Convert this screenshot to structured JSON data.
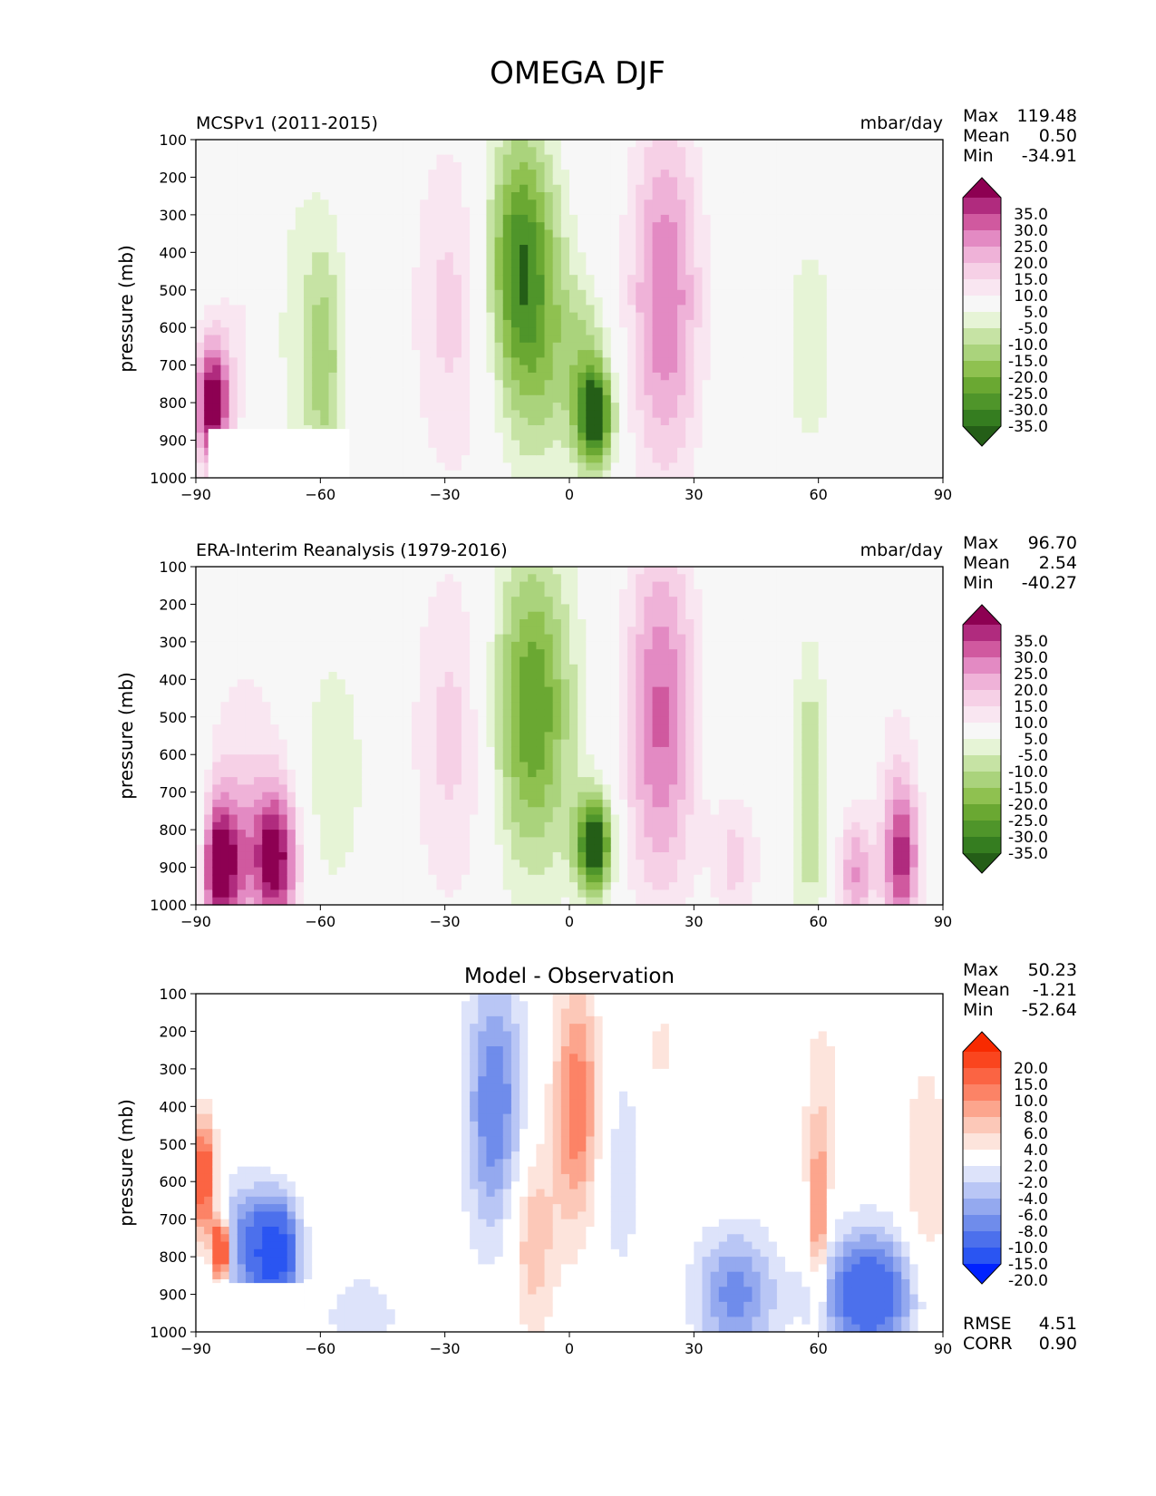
{
  "figure": {
    "title": "OMEGA DJF"
  },
  "colors": {
    "green_magenta": [
      "#245e17",
      "#357d20",
      "#4f952a",
      "#6aa832",
      "#8fc150",
      "#aad37c",
      "#c6e3a4",
      "#e6f4d6",
      "#f7f7f7",
      "#f9e6f1",
      "#f6d0e6",
      "#efb2d8",
      "#e38ac3",
      "#d0599f",
      "#b02b7e",
      "#8d0052"
    ],
    "blue_red": [
      "#0022ff",
      "#2a55f2",
      "#4c70ec",
      "#6f8ceb",
      "#94a9ef",
      "#b9c6f5",
      "#dde3fa",
      "#ffffff",
      "#fde4dc",
      "#fcc8b8",
      "#fca58d",
      "#fc8366",
      "#fb6443",
      "#fa451e",
      "#f82a00"
    ]
  },
  "chart_data": [
    {
      "type": "heatmap",
      "name": "model",
      "subtitle": "MCSPv1 (2011-2015)",
      "units": "mbar/day",
      "xlabel": "",
      "ylabel": "pressure (mb)",
      "xlim": [
        -90,
        90
      ],
      "ylim": [
        1000,
        100
      ],
      "xticks": [
        "−90",
        "−60",
        "−30",
        "0",
        "30",
        "60",
        "90"
      ],
      "yticks": [
        "100",
        "200",
        "300",
        "400",
        "500",
        "600",
        "700",
        "800",
        "900",
        "1000"
      ],
      "stats": {
        "max_label": "Max",
        "max": "119.48",
        "mean_label": "Mean",
        "mean": "0.50",
        "min_label": "Min",
        "min": "-34.91"
      },
      "colorbar": {
        "palette": "green_magenta",
        "labels": [
          "35.0",
          "30.0",
          "25.0",
          "20.0",
          "15.0",
          "10.0",
          "5.0",
          "-5.0",
          "-10.0",
          "-15.0",
          "-20.0",
          "-25.0",
          "-30.0",
          "-35.0"
        ]
      },
      "blobs": [
        {
          "lat": -86,
          "p": 800,
          "wx": 3,
          "wy": 120,
          "v": 40
        },
        {
          "lat": -78,
          "p": 620,
          "wx": 5,
          "wy": 200,
          "v": 6
        },
        {
          "lat": -64,
          "p": 620,
          "wx": 7,
          "wy": 330,
          "v": -8
        },
        {
          "lat": -59,
          "p": 700,
          "wx": 3,
          "wy": 220,
          "v": -13
        },
        {
          "lat": -28,
          "p": 550,
          "wx": 7,
          "wy": 330,
          "v": 12
        },
        {
          "lat": -12,
          "p": 400,
          "wx": 6,
          "wy": 250,
          "v": -30
        },
        {
          "lat": -7,
          "p": 680,
          "wx": 7,
          "wy": 250,
          "v": -14
        },
        {
          "lat": 6,
          "p": 840,
          "wx": 3.2,
          "wy": 95,
          "v": -42
        },
        {
          "lat": 4,
          "p": 650,
          "wx": 4,
          "wy": 120,
          "v": -10
        },
        {
          "lat": 23,
          "p": 520,
          "wx": 6,
          "wy": 340,
          "v": 25
        },
        {
          "lat": 58,
          "p": 650,
          "wx": 5,
          "wy": 250,
          "v": -8
        },
        {
          "lat": 79,
          "p": 650,
          "wx": 5,
          "wy": 240,
          "v": 5
        }
      ]
    },
    {
      "type": "heatmap",
      "name": "observation",
      "subtitle": "ERA-Interim Reanalysis (1979-2016)",
      "units": "mbar/day",
      "xlabel": "",
      "ylabel": "pressure (mb)",
      "xlim": [
        -90,
        90
      ],
      "ylim": [
        1000,
        100
      ],
      "xticks": [
        "−90",
        "−60",
        "−30",
        "0",
        "30",
        "60",
        "90"
      ],
      "yticks": [
        "100",
        "200",
        "300",
        "400",
        "500",
        "600",
        "700",
        "800",
        "900",
        "1000"
      ],
      "stats": {
        "max_label": "Max",
        "max": "96.70",
        "mean_label": "Mean",
        "mean": "2.54",
        "min_label": "Min",
        "min": "-40.27"
      },
      "colorbar": {
        "palette": "green_magenta",
        "labels": [
          "35.0",
          "30.0",
          "25.0",
          "20.0",
          "15.0",
          "10.0",
          "5.0",
          "-5.0",
          "-10.0",
          "-15.0",
          "-20.0",
          "-25.0",
          "-30.0",
          "-35.0"
        ]
      },
      "blobs": [
        {
          "lat": -84,
          "p": 900,
          "wx": 4,
          "wy": 140,
          "v": 40
        },
        {
          "lat": -71,
          "p": 880,
          "wx": 4,
          "wy": 140,
          "v": 38
        },
        {
          "lat": -78,
          "p": 650,
          "wx": 7,
          "wy": 250,
          "v": 8
        },
        {
          "lat": -89,
          "p": 820,
          "wx": 1.5,
          "wy": 220,
          "v": -14
        },
        {
          "lat": -57,
          "p": 650,
          "wx": 6,
          "wy": 250,
          "v": -9
        },
        {
          "lat": -28,
          "p": 550,
          "wx": 7,
          "wy": 330,
          "v": 12
        },
        {
          "lat": -9,
          "p": 480,
          "wx": 7,
          "wy": 300,
          "v": -30
        },
        {
          "lat": 6,
          "p": 840,
          "wx": 3.2,
          "wy": 95,
          "v": -42
        },
        {
          "lat": 22,
          "p": 500,
          "wx": 6,
          "wy": 340,
          "v": 26
        },
        {
          "lat": 40,
          "p": 880,
          "wx": 4,
          "wy": 120,
          "v": 12
        },
        {
          "lat": 58,
          "p": 700,
          "wx": 3,
          "wy": 280,
          "v": -15
        },
        {
          "lat": 80,
          "p": 880,
          "wx": 3,
          "wy": 140,
          "v": 30
        },
        {
          "lat": 69,
          "p": 920,
          "wx": 3,
          "wy": 120,
          "v": 20
        },
        {
          "lat": 79,
          "p": 650,
          "wx": 4,
          "wy": 240,
          "v": 6
        }
      ]
    },
    {
      "type": "heatmap",
      "name": "difference",
      "subtitle": "Model - Observation",
      "units": "",
      "xlabel": "",
      "ylabel": "pressure (mb)",
      "xlim": [
        -90,
        90
      ],
      "ylim": [
        1000,
        100
      ],
      "xticks": [
        "−90",
        "−60",
        "−30",
        "0",
        "30",
        "60",
        "90"
      ],
      "yticks": [
        "100",
        "200",
        "300",
        "400",
        "500",
        "600",
        "700",
        "800",
        "900",
        "1000"
      ],
      "stats": {
        "max_label": "Max",
        "max": "50.23",
        "mean_label": "Mean",
        "mean": "-1.21",
        "min_label": "Min",
        "min": "-52.64"
      },
      "rmse_label": "RMSE",
      "rmse": "4.51",
      "corr_label": "CORR",
      "corr": "0.90",
      "colorbar": {
        "palette": "blue_red",
        "labels": [
          "20.0",
          "15.0",
          "10.0",
          "8.0",
          "6.0",
          "4.0",
          "2.0",
          "-2.0",
          "-4.0",
          "-6.0",
          "-8.0",
          "-10.0",
          "-15.0",
          "-20.0"
        ]
      },
      "blobs": [
        {
          "lat": -88,
          "p": 600,
          "wx": 2,
          "wy": 120,
          "v": 14
        },
        {
          "lat": -84,
          "p": 780,
          "wx": 1.5,
          "wy": 60,
          "v": 22
        },
        {
          "lat": -71,
          "p": 790,
          "wx": 4,
          "wy": 100,
          "v": -18
        },
        {
          "lat": -80,
          "p": 760,
          "wx": 5,
          "wy": 120,
          "v": -7
        },
        {
          "lat": -50,
          "p": 960,
          "wx": 6,
          "wy": 80,
          "v": -4
        },
        {
          "lat": -18,
          "p": 400,
          "wx": 5,
          "wy": 250,
          "v": -10
        },
        {
          "lat": 2,
          "p": 400,
          "wx": 4,
          "wy": 230,
          "v": 10
        },
        {
          "lat": -9,
          "p": 750,
          "wx": 4,
          "wy": 180,
          "v": 6
        },
        {
          "lat": 12,
          "p": 560,
          "wx": 5,
          "wy": 280,
          "v": -3
        },
        {
          "lat": 22,
          "p": 250,
          "wx": 3,
          "wy": 80,
          "v": 3
        },
        {
          "lat": 40,
          "p": 900,
          "wx": 7,
          "wy": 120,
          "v": -9
        },
        {
          "lat": 72,
          "p": 900,
          "wx": 8,
          "wy": 120,
          "v": -14
        },
        {
          "lat": 60,
          "p": 720,
          "wx": 1.5,
          "wy": 160,
          "v": 9
        },
        {
          "lat": 61,
          "p": 400,
          "wx": 4,
          "wy": 220,
          "v": 3
        },
        {
          "lat": 86,
          "p": 600,
          "wx": 4,
          "wy": 250,
          "v": 4
        }
      ]
    }
  ]
}
